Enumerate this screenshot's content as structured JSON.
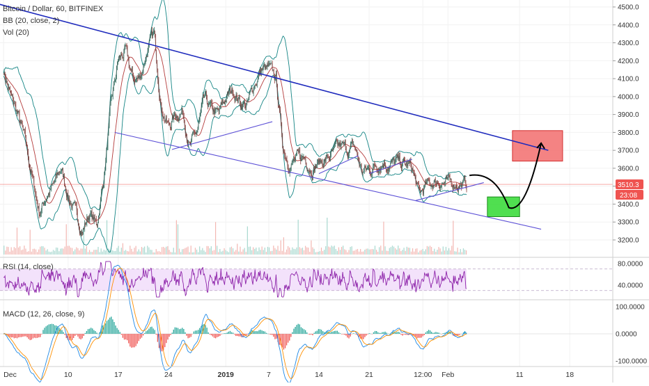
{
  "chart_data": {
    "type": "line",
    "symbol_title": "Bitcoin / Dollar, 60, BITFINEX",
    "indicators": {
      "bb": "BB (20, close, 2)",
      "vol": "Vol (20)",
      "rsi": "RSI (14, close)",
      "macd": "MACD (12, 26, close, 9)"
    },
    "price_axis": {
      "ticks": [
        "4500.0",
        "4400.0",
        "4300.0",
        "4200.0",
        "4100.0",
        "4000.0",
        "3900.0",
        "3800.0",
        "3700.0",
        "3600.0",
        "3500.0",
        "3400.0",
        "3300.0",
        "3200.0"
      ],
      "tick_values": [
        4500,
        4400,
        4300,
        4200,
        4100,
        4000,
        3900,
        3800,
        3700,
        3600,
        3500,
        3400,
        3300,
        3200
      ],
      "range": [
        3140,
        4520
      ]
    },
    "last_price": {
      "value": 3510.3,
      "label": "3510.3",
      "countdown": "23:08",
      "color": "#ef5350"
    },
    "rsi_axis": {
      "ticks": [
        "80.0000",
        "40.0000"
      ],
      "tick_values": [
        80,
        40
      ],
      "range": [
        5,
        90
      ],
      "band": [
        30,
        70
      ]
    },
    "macd_axis": {
      "ticks": [
        "100.0000",
        "0.0000",
        "-100.0000"
      ],
      "tick_values": [
        100,
        0,
        -100
      ],
      "range": [
        -120,
        120
      ]
    },
    "x_axis": {
      "labels": [
        "Dec",
        "10",
        "17",
        "24",
        "2019",
        "7",
        "14",
        "21",
        "12:00",
        "Feb",
        "11",
        "18"
      ],
      "bold": [
        "2019"
      ],
      "day_positions": [
        0,
        9,
        16,
        23,
        31,
        37,
        44,
        51,
        58.5,
        62,
        72,
        79
      ]
    },
    "price_series": {
      "t": [
        0,
        1,
        2,
        3,
        4,
        5,
        6,
        7,
        8,
        9,
        10,
        11,
        12,
        13,
        14,
        15,
        16,
        17,
        18,
        19,
        20,
        21,
        22,
        23,
        24,
        25,
        26,
        27,
        28,
        29,
        30,
        31,
        32,
        33,
        34,
        35,
        36,
        37,
        38,
        39,
        40,
        41,
        42,
        43,
        44,
        45,
        46,
        47,
        48,
        49,
        50,
        51,
        52,
        53,
        54,
        55,
        56,
        57,
        58,
        59,
        60,
        61,
        62,
        63,
        64
      ],
      "close": [
        4150,
        4000,
        3900,
        3750,
        3550,
        3350,
        3450,
        3500,
        3600,
        3450,
        3350,
        3250,
        3350,
        3280,
        3550,
        3950,
        4200,
        4250,
        4100,
        4100,
        4250,
        4350,
        3950,
        3830,
        3900,
        3920,
        3720,
        3800,
        3980,
        3920,
        3900,
        3990,
        4040,
        3970,
        3950,
        4070,
        4150,
        4150,
        4100,
        3720,
        3620,
        3650,
        3660,
        3600,
        3630,
        3650,
        3680,
        3720,
        3700,
        3720,
        3580,
        3590,
        3620,
        3640,
        3620,
        3630,
        3620,
        3600,
        3450,
        3500,
        3520,
        3530,
        3510,
        3520,
        3510
      ]
    },
    "annotations": {
      "resistance_line": {
        "points": [
          [
            -2,
            4530
          ],
          [
            76,
            3700
          ]
        ],
        "color": "#1f2bbd"
      },
      "support_line": {
        "points": [
          [
            15.5,
            3800
          ],
          [
            75,
            3260
          ]
        ],
        "color": "#5b4fd6"
      },
      "flags": [
        {
          "points": [
            [
              23.5,
              3705
            ],
            [
              37.5,
              3860
            ]
          ]
        },
        {
          "points": [
            [
              44,
              3570
            ],
            [
              49.5,
              3670
            ]
          ]
        },
        {
          "points": [
            [
              51,
              3570
            ],
            [
              57,
              3650
            ]
          ]
        },
        {
          "points": [
            [
              57.5,
              3420
            ],
            [
              67,
              3520
            ]
          ]
        }
      ],
      "target_box": {
        "t": [
          71,
          78
        ],
        "p": [
          3640,
          3810
        ],
        "color": "#f26d6d"
      },
      "buy_box": {
        "t": [
          67.5,
          72
        ],
        "p": [
          3330,
          3440
        ],
        "color": "#3ddc3d"
      },
      "projection_path": {
        "points": [
          [
            65,
            3560
          ],
          [
            68,
            3580
          ],
          [
            69.5,
            3480
          ],
          [
            70.5,
            3380
          ],
          [
            72.5,
            3390
          ],
          [
            74,
            3560
          ],
          [
            75,
            3740
          ]
        ],
        "color": "#000000"
      }
    },
    "colors": {
      "price": "#333333",
      "bb_band": "#138484",
      "bb_basis": "#b33a3a",
      "rsi_line": "#8e24aa",
      "rsi_band_fill": "#f3e2fb",
      "macd_line": "#1e88e5",
      "signal_line": "#ff8f00",
      "hist_pos": "#26a69a",
      "hist_neg": "#ef5350",
      "vol_up": "#a8d8cf",
      "vol_down": "#f3b7b2"
    }
  }
}
